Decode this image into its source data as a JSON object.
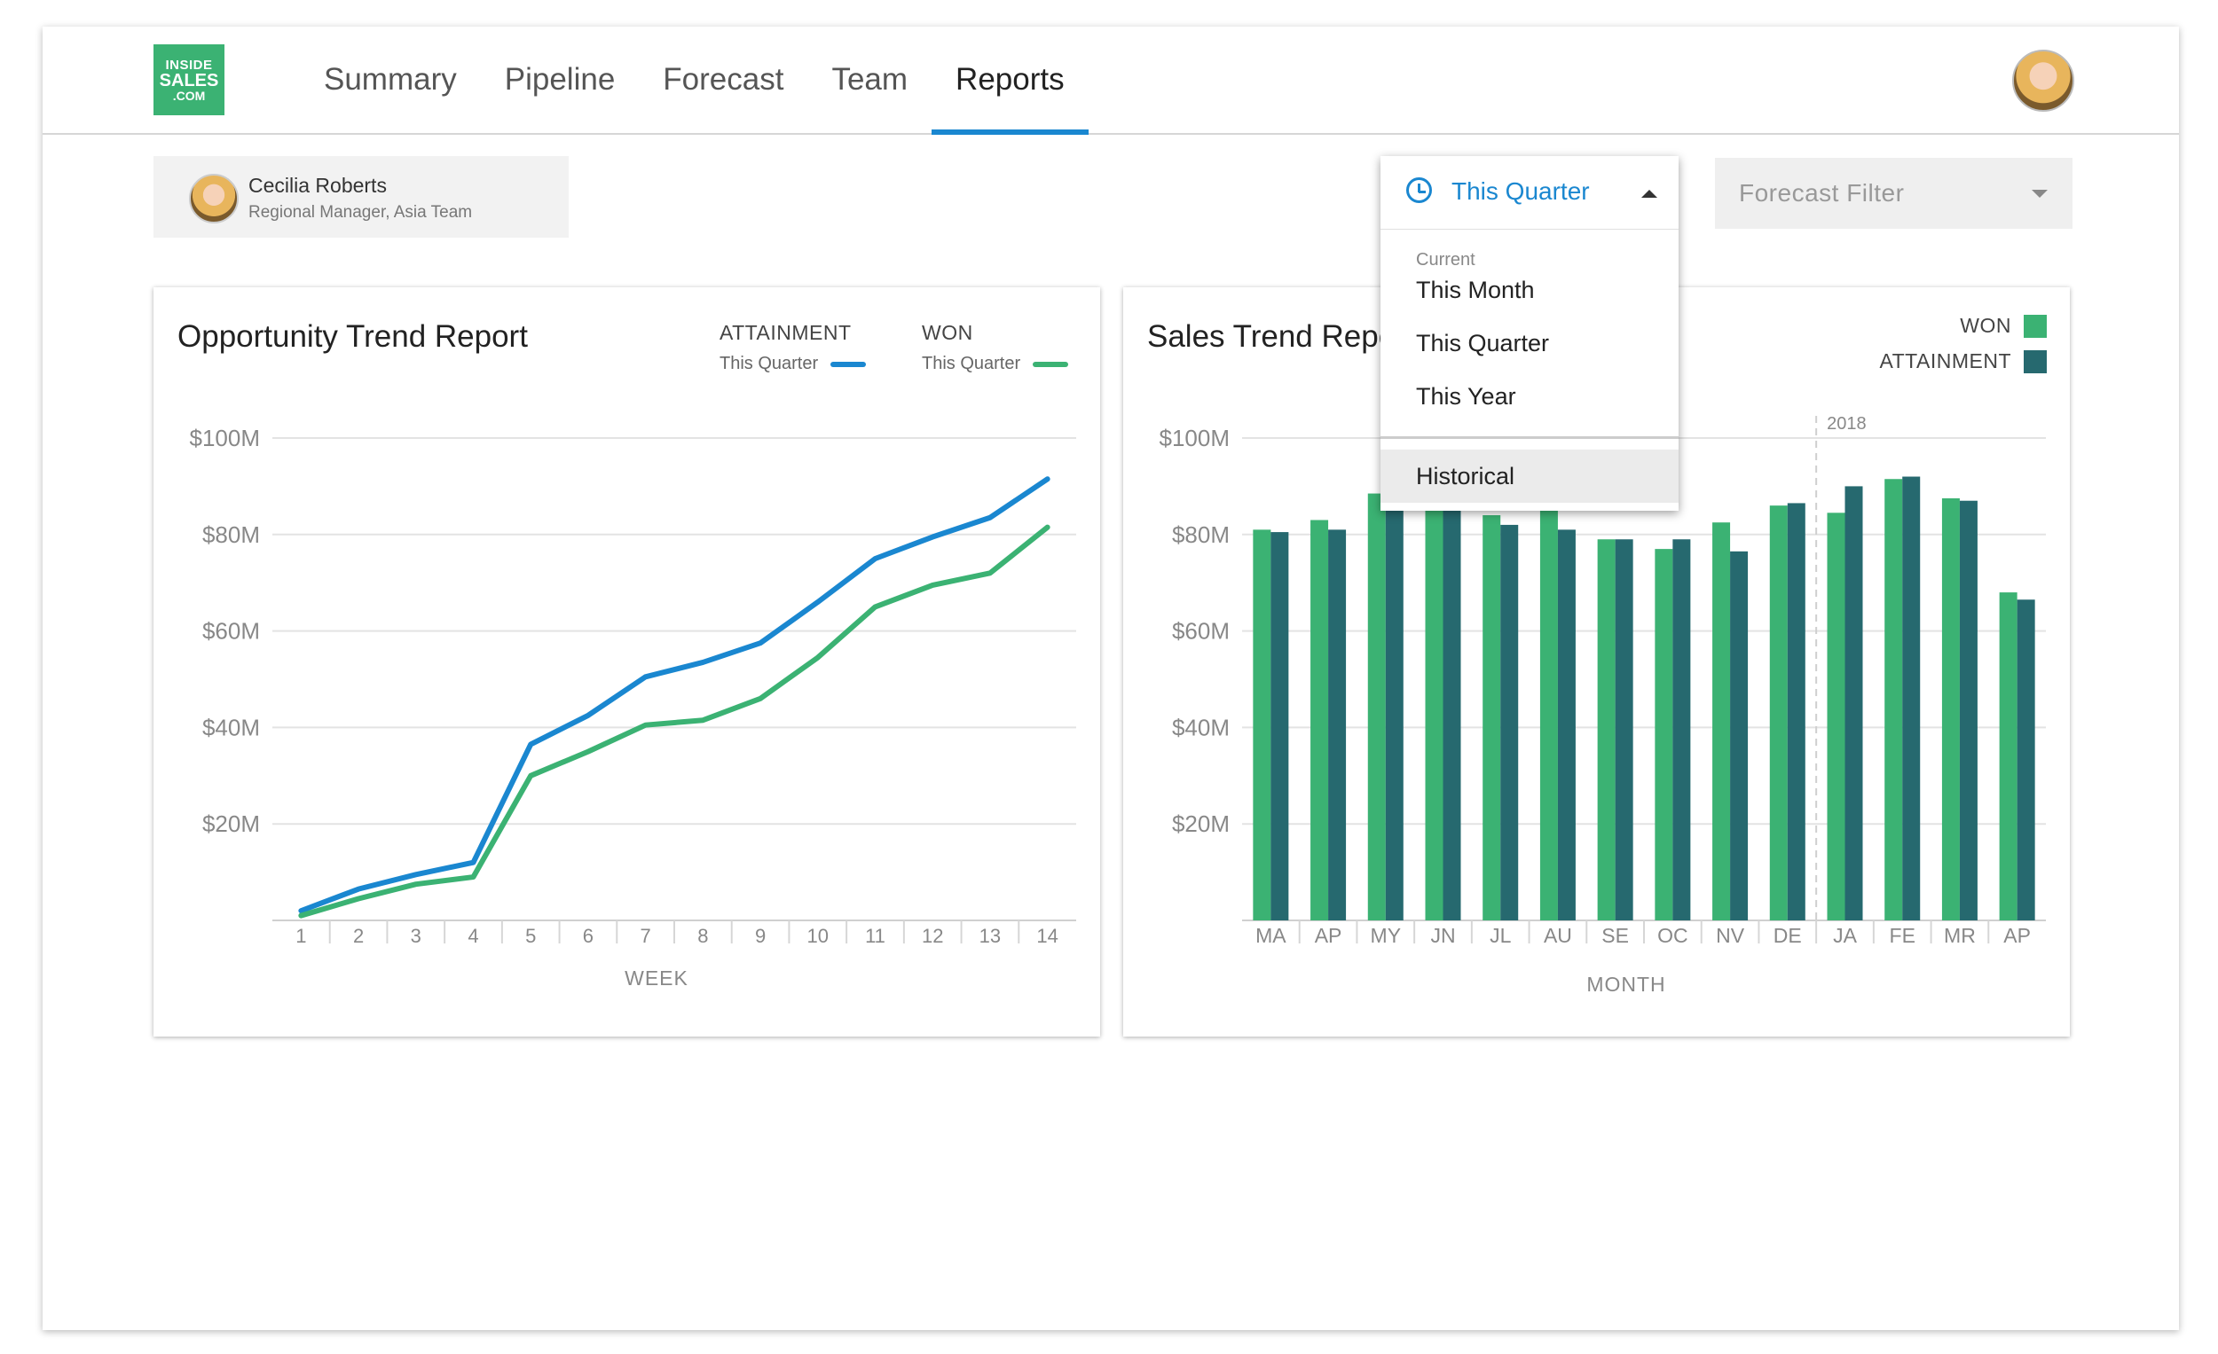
{
  "logo": {
    "line1": "INSIDE",
    "line2": "SALES",
    "line3": ".COM"
  },
  "nav": {
    "tabs": [
      {
        "label": "Summary"
      },
      {
        "label": "Pipeline"
      },
      {
        "label": "Forecast"
      },
      {
        "label": "Team"
      },
      {
        "label": "Reports"
      }
    ],
    "active": "Reports"
  },
  "user": {
    "name": "Cecilia Roberts",
    "role": "Regional Manager, Asia Team"
  },
  "time_filter": {
    "selected": "This Quarter",
    "section_label": "Current",
    "options": [
      "This Month",
      "This Quarter",
      "This Year"
    ],
    "historical": "Historical"
  },
  "forecast_filter": {
    "placeholder": "Forecast Filter"
  },
  "colors": {
    "accent": "#1a87d0",
    "won": "#3bb273",
    "attainment": "#26696f"
  },
  "charts": {
    "opportunity": {
      "title": "Opportunity Trend Report",
      "legend": [
        {
          "label": "ATTAINMENT",
          "sub": "This Quarter"
        },
        {
          "label": "WON",
          "sub": "This Quarter"
        }
      ]
    },
    "sales": {
      "title": "Sales Trend Report",
      "legend": [
        {
          "label": "WON"
        },
        {
          "label": "ATTAINMENT"
        }
      ]
    }
  },
  "chart_data": [
    {
      "type": "line",
      "title": "Opportunity Trend Report",
      "xlabel": "WEEK",
      "ylabel": "",
      "x": [
        1,
        2,
        3,
        4,
        5,
        6,
        7,
        8,
        9,
        10,
        11,
        12,
        13,
        14
      ],
      "ylim": [
        0,
        100
      ],
      "y_ticks": [
        "$20M",
        "$40M",
        "$60M",
        "$80M",
        "$100M"
      ],
      "y_tick_values": [
        20,
        40,
        60,
        80,
        100
      ],
      "grid": true,
      "legend_position": "top-right",
      "series": [
        {
          "name": "ATTAINMENT",
          "values": [
            2,
            6.5,
            9.5,
            12,
            36.5,
            42.5,
            50.5,
            53.5,
            57.5,
            66,
            75,
            79.5,
            83.5,
            91.5
          ]
        },
        {
          "name": "WON",
          "values": [
            1,
            4.5,
            7.5,
            9,
            30,
            35,
            40.5,
            41.5,
            46,
            54.5,
            65,
            69.5,
            72,
            81.5
          ]
        }
      ]
    },
    {
      "type": "bar",
      "title": "Sales Trend Report",
      "xlabel": "MONTH",
      "ylabel": "",
      "categories": [
        "MA",
        "AP",
        "MY",
        "JN",
        "JL",
        "AU",
        "SE",
        "OC",
        "NV",
        "DE",
        "JA",
        "FE",
        "MR",
        "AP"
      ],
      "ylim": [
        0,
        100
      ],
      "y_ticks": [
        "$20M",
        "$40M",
        "$60M",
        "$80M",
        "$100M"
      ],
      "y_tick_values": [
        20,
        40,
        60,
        80,
        100
      ],
      "grid": true,
      "legend_position": "top-right",
      "annotation": {
        "label": "2018",
        "before_category_index": 10
      },
      "series": [
        {
          "name": "WON",
          "values": [
            81,
            83,
            88.5,
            87,
            84,
            87,
            79,
            77,
            82.5,
            86,
            84.5,
            91.5,
            87.5,
            68
          ]
        },
        {
          "name": "ATTAINMENT",
          "values": [
            80.5,
            81,
            86,
            85,
            82,
            81,
            79,
            79,
            76.5,
            86.5,
            90,
            92,
            87,
            66.5
          ]
        }
      ]
    }
  ]
}
